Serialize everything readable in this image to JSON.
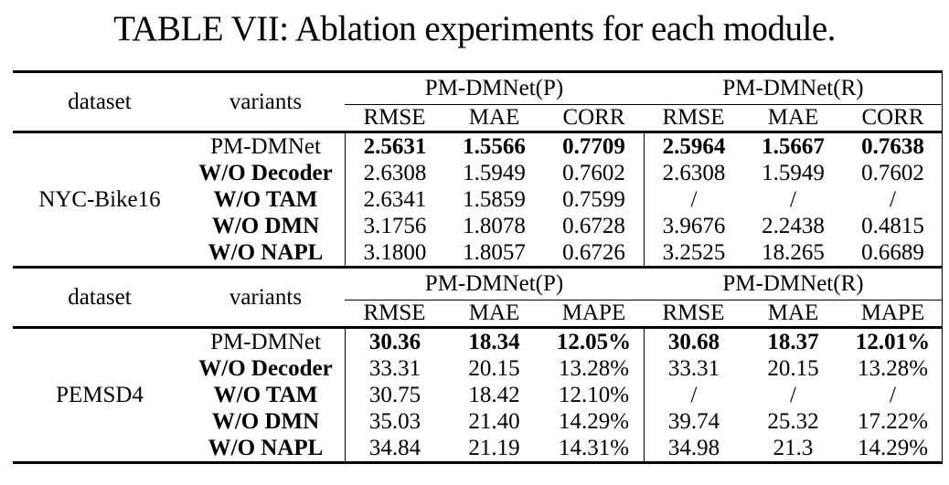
{
  "page": {
    "background": "#ffffff",
    "text_color": "#000000",
    "rule_color": "#000000"
  },
  "title": "TABLE VII: Ablation experiments for each module.",
  "table": {
    "blocks": [
      {
        "dataset": "NYC-Bike16",
        "header": {
          "dataset_label": "dataset",
          "variants_label": "variants",
          "groups": [
            {
              "label": "PM-DMNet(P)",
              "metrics": [
                "RMSE",
                "MAE",
                "CORR"
              ]
            },
            {
              "label": "PM-DMNet(R)",
              "metrics": [
                "RMSE",
                "MAE",
                "CORR"
              ]
            }
          ]
        },
        "rows": [
          {
            "variant": "PM-DMNet",
            "variant_bold": false,
            "values_bold": true,
            "values": [
              "2.5631",
              "1.5566",
              "0.7709",
              "2.5964",
              "1.5667",
              "0.7638"
            ]
          },
          {
            "variant": "W/O Decoder",
            "variant_bold": true,
            "values_bold": false,
            "values": [
              "2.6308",
              "1.5949",
              "0.7602",
              "2.6308",
              "1.5949",
              "0.7602"
            ]
          },
          {
            "variant": "W/O TAM",
            "variant_bold": true,
            "values_bold": false,
            "values": [
              "2.6341",
              "1.5859",
              "0.7599",
              "/",
              "/",
              "/"
            ]
          },
          {
            "variant": "W/O DMN",
            "variant_bold": true,
            "values_bold": false,
            "values": [
              "3.1756",
              "1.8078",
              "0.6728",
              "3.9676",
              "2.2438",
              "0.4815"
            ]
          },
          {
            "variant": "W/O NAPL",
            "variant_bold": true,
            "values_bold": false,
            "values": [
              "3.1800",
              "1.8057",
              "0.6726",
              "3.2525",
              "18.265",
              "0.6689"
            ]
          }
        ]
      },
      {
        "dataset": "PEMSD4",
        "header": {
          "dataset_label": "dataset",
          "variants_label": "variants",
          "groups": [
            {
              "label": "PM-DMNet(P)",
              "metrics": [
                "RMSE",
                "MAE",
                "MAPE"
              ]
            },
            {
              "label": "PM-DMNet(R)",
              "metrics": [
                "RMSE",
                "MAE",
                "MAPE"
              ]
            }
          ]
        },
        "rows": [
          {
            "variant": "PM-DMNet",
            "variant_bold": false,
            "values_bold": true,
            "values": [
              "30.36",
              "18.34",
              "12.05%",
              "30.68",
              "18.37",
              "12.01%"
            ]
          },
          {
            "variant": "W/O Decoder",
            "variant_bold": true,
            "values_bold": false,
            "values": [
              "33.31",
              "20.15",
              "13.28%",
              "33.31",
              "20.15",
              "13.28%"
            ]
          },
          {
            "variant": "W/O TAM",
            "variant_bold": true,
            "values_bold": false,
            "values": [
              "30.75",
              "18.42",
              "12.10%",
              "/",
              "/",
              "/"
            ]
          },
          {
            "variant": "W/O DMN",
            "variant_bold": true,
            "values_bold": false,
            "values": [
              "35.03",
              "21.40",
              "14.29%",
              "39.74",
              "25.32",
              "17.22%"
            ]
          },
          {
            "variant": "W/O NAPL",
            "variant_bold": true,
            "values_bold": false,
            "values": [
              "34.84",
              "21.19",
              "14.31%",
              "34.98",
              "21.3",
              "14.29%"
            ]
          }
        ]
      }
    ]
  }
}
